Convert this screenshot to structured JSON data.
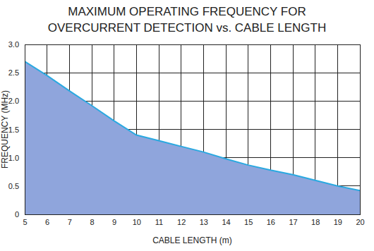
{
  "chart_data": {
    "type": "area",
    "title": [
      "MAXIMUM OPERATING FREQUENCY FOR",
      "OVERCURRENT DETECTION vs. CABLE LENGTH"
    ],
    "x_label": "CABLE LENGTH (m)",
    "y_label": "FREQUENCY (MHz)",
    "x": [
      5,
      6,
      7,
      8,
      9,
      10,
      11,
      12,
      13,
      14,
      15,
      16,
      17,
      18,
      19,
      20
    ],
    "values": [
      2.7,
      2.45,
      2.18,
      1.92,
      1.65,
      1.4,
      1.3,
      1.2,
      1.1,
      0.98,
      0.87,
      0.78,
      0.7,
      0.6,
      0.5,
      0.42
    ],
    "color": "#8fa5dc",
    "xlim": [
      5,
      20
    ],
    "xticks": [
      5,
      6,
      7,
      8,
      9,
      10,
      11,
      12,
      13,
      14,
      15,
      16,
      17,
      18,
      19,
      20
    ],
    "ylim": [
      0,
      3
    ],
    "yticks": [
      0,
      0.5,
      {
        "value": 1,
        "label": "1.0"
      },
      1.5,
      {
        "value": 2,
        "label": "2.0"
      },
      2.5,
      {
        "value": 3,
        "label": "3.0"
      }
    ],
    "grid": true
  }
}
